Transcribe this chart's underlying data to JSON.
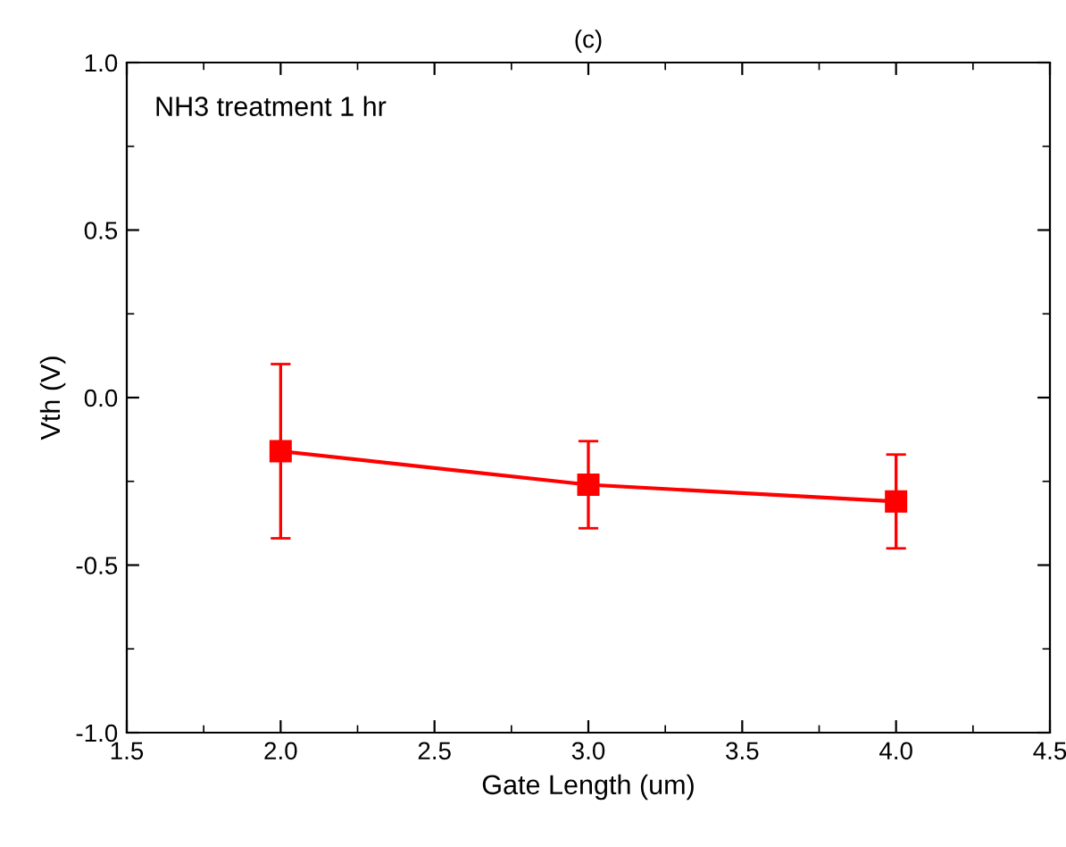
{
  "chart_data": {
    "type": "line",
    "title": "(c)",
    "xlabel": "Gate Length (um)",
    "ylabel": "Vth (V)",
    "annotations": [
      "NH3 treatment 1 hr"
    ],
    "x": [
      2.0,
      3.0,
      4.0
    ],
    "series": [
      {
        "color": "#ff0000",
        "values": [
          -0.16,
          -0.26,
          -0.31
        ],
        "errors": [
          0.26,
          0.13,
          0.14
        ]
      }
    ],
    "marker": "square",
    "line_style": "solid",
    "xlim": [
      1.5,
      4.5
    ],
    "xticks": [
      1.5,
      {
        "value": 2,
        "label": "2.0"
      },
      2.5,
      {
        "value": 3,
        "label": "3.0"
      },
      3.5,
      {
        "value": 4,
        "label": "4.0"
      },
      4.5
    ],
    "ylim": [
      -1.0,
      1.0
    ],
    "yticks": [
      {
        "value": -1,
        "label": "-1.0"
      },
      -0.5,
      {
        "value": 0,
        "label": "0.0"
      },
      0.5,
      {
        "value": 1,
        "label": "1.0"
      }
    ],
    "grid": false,
    "legend": false
  }
}
